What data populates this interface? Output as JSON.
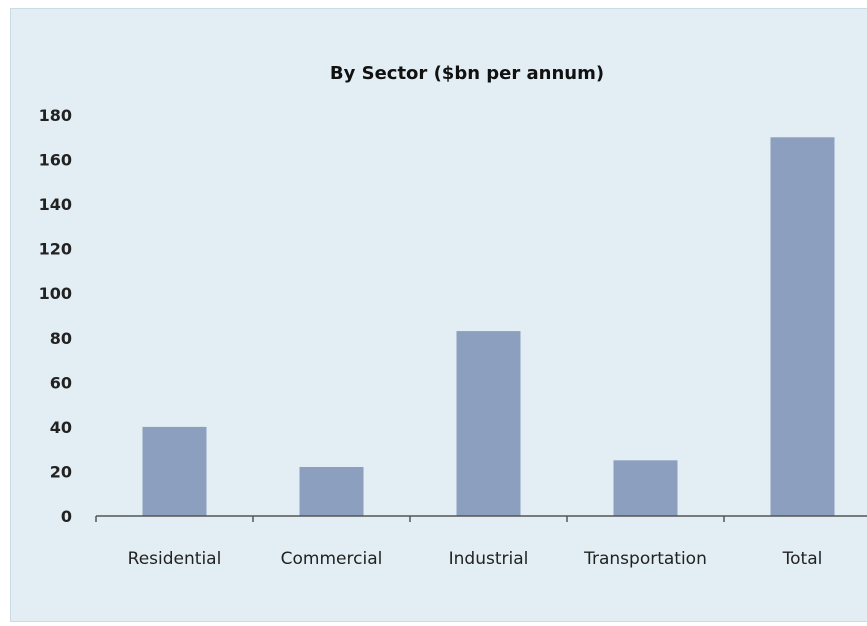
{
  "chart_data": {
    "type": "bar",
    "title": "By Sector ($bn per annum)",
    "xlabel": "",
    "ylabel": "",
    "categories": [
      "Residential",
      "Commercial",
      "Industrial",
      "Transportation",
      "Total"
    ],
    "values": [
      40,
      22,
      83,
      25,
      170
    ],
    "ylim": [
      0,
      180
    ],
    "yticks": [
      0,
      20,
      40,
      60,
      80,
      100,
      120,
      140,
      160,
      180
    ],
    "grid": false,
    "legend": "none",
    "colors": {
      "bar": "#8c9fbf",
      "axis": "#555555",
      "background": "#e3eef4"
    }
  }
}
